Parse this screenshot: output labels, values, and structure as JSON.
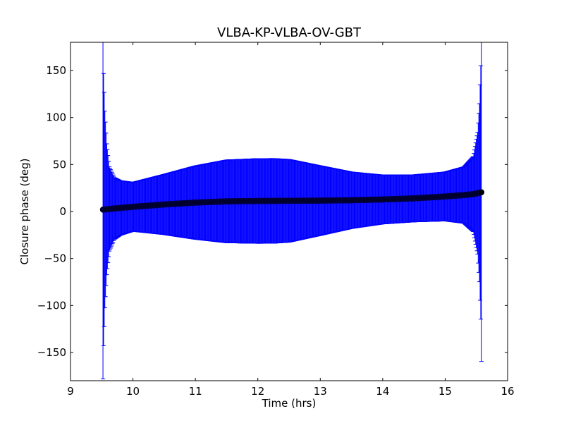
{
  "chart_data": {
    "type": "scatter",
    "title": "VLBA-KP-VLBA-OV-GBT",
    "xlabel": "Time (hrs)",
    "ylabel": "Closure phase (deg)",
    "xlim": [
      9,
      16
    ],
    "ylim": [
      -180,
      180
    ],
    "x_ticks": [
      9,
      10,
      11,
      12,
      13,
      14,
      15,
      16
    ],
    "x_tick_labels": [
      "9",
      "10",
      "11",
      "12",
      "13",
      "14",
      "15",
      "16"
    ],
    "y_ticks": [
      -150,
      -100,
      -50,
      0,
      50,
      100,
      150
    ],
    "y_tick_labels": [
      "−150",
      "−100",
      "−50",
      "0",
      "50",
      "100",
      "150"
    ],
    "grid": false,
    "legend": "none",
    "series": [
      {
        "marker": "circle",
        "color": "#000000",
        "errorbar_color": "#0000ff",
        "x": [
          9.52,
          9.53,
          9.55,
          9.58,
          9.62,
          9.7,
          9.8,
          10.0,
          10.5,
          11.0,
          11.5,
          12.0,
          12.25,
          12.5,
          13.0,
          13.5,
          14.0,
          14.5,
          15.0,
          15.3,
          15.45,
          15.52,
          15.55,
          15.57,
          15.58
        ],
        "y": [
          2,
          2,
          2.2,
          2.4,
          2.7,
          3.2,
          3.8,
          5,
          7.5,
          9.5,
          10.8,
          11.2,
          11.3,
          11.4,
          11.6,
          12.0,
          12.8,
          14.0,
          16.0,
          17.5,
          18.5,
          19.5,
          20,
          20.3,
          20.5
        ],
        "y_err": [
          180,
          145,
          105,
          70,
          45,
          33,
          29,
          26,
          32,
          39,
          44,
          45,
          45,
          44,
          37,
          30,
          26,
          25,
          26,
          30,
          40,
          65,
          95,
          135,
          180
        ]
      }
    ]
  }
}
